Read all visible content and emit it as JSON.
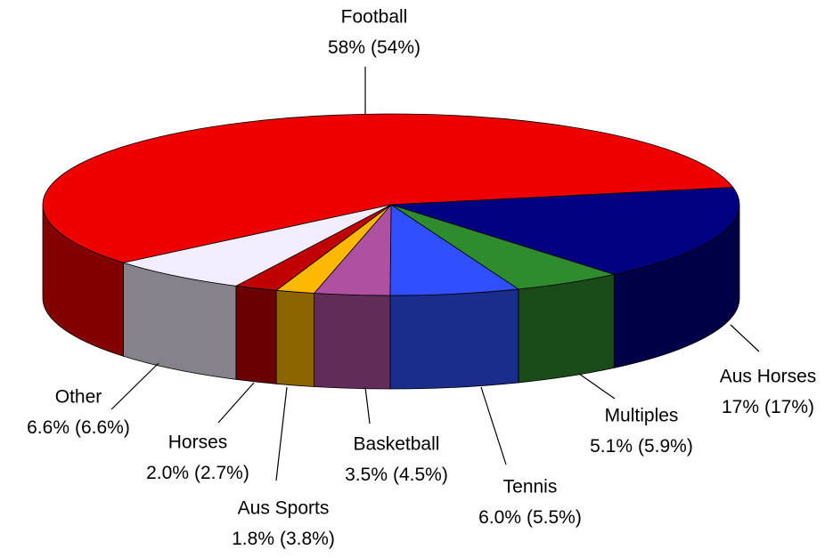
{
  "chart_data": {
    "type": "pie3d",
    "categories": [
      "Football",
      "Aus Horses",
      "Multiples",
      "Tennis",
      "Basketball",
      "Aus Sports",
      "Horses",
      "Other"
    ],
    "series": [
      {
        "values": [
          58,
          17,
          5.1,
          6.0,
          3.5,
          1.8,
          2.0,
          6.6
        ],
        "value_labels": [
          "58%",
          "17%",
          "5.1%",
          "6.0%",
          "3.5%",
          "1.8%",
          "2.0%",
          "6.6%"
        ]
      },
      {
        "values": [
          54,
          17,
          5.9,
          5.5,
          4.5,
          3.8,
          2.7,
          6.6
        ],
        "value_labels": [
          "(54%)",
          "(17%)",
          "(5.9%)",
          "(5.5%)",
          "(4.5%)",
          "(3.8%)",
          "(2.7%)",
          "(6.6%)"
        ]
      }
    ],
    "colors": [
      "#ee0000",
      "#000080",
      "#2e8b2e",
      "#3050ff",
      "#b050a0",
      "#ffb800",
      "#c00000",
      "#f2ecff"
    ]
  }
}
